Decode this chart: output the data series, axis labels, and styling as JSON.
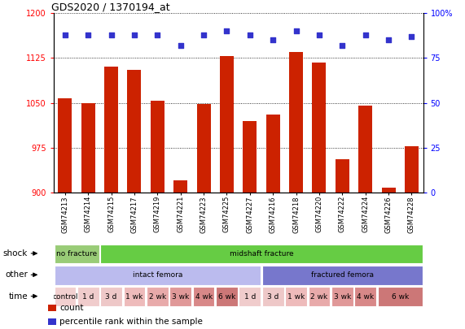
{
  "title": "GDS2020 / 1370194_at",
  "samples": [
    "GSM74213",
    "GSM74214",
    "GSM74215",
    "GSM74217",
    "GSM74219",
    "GSM74221",
    "GSM74223",
    "GSM74225",
    "GSM74227",
    "GSM74216",
    "GSM74218",
    "GSM74220",
    "GSM74222",
    "GSM74224",
    "GSM74226",
    "GSM74228"
  ],
  "bar_values": [
    1057,
    1050,
    1110,
    1105,
    1053,
    920,
    1048,
    1128,
    1020,
    1030,
    1135,
    1118,
    956,
    1045,
    908,
    978
  ],
  "percentile_values": [
    88,
    88,
    88,
    88,
    88,
    82,
    88,
    90,
    88,
    85,
    90,
    88,
    82,
    88,
    85,
    87
  ],
  "ylim_left": [
    900,
    1200
  ],
  "ylim_right": [
    0,
    100
  ],
  "yticks_left": [
    900,
    975,
    1050,
    1125,
    1200
  ],
  "yticks_right": [
    0,
    25,
    50,
    75,
    100
  ],
  "bar_color": "#cc2200",
  "dot_color": "#3333cc",
  "bar_width": 0.6,
  "shock_labels": [
    {
      "text": "no fracture",
      "start": 0,
      "end": 2,
      "color": "#99cc77"
    },
    {
      "text": "midshaft fracture",
      "start": 2,
      "end": 16,
      "color": "#66cc44"
    }
  ],
  "other_labels": [
    {
      "text": "intact femora",
      "start": 0,
      "end": 9,
      "color": "#bbbbee"
    },
    {
      "text": "fractured femora",
      "start": 9,
      "end": 16,
      "color": "#7777cc"
    }
  ],
  "time_labels": [
    {
      "text": "control",
      "start": 0,
      "end": 1,
      "color": "#f2d0d0"
    },
    {
      "text": "1 d",
      "start": 1,
      "end": 2,
      "color": "#f0cccc"
    },
    {
      "text": "3 d",
      "start": 2,
      "end": 3,
      "color": "#eec8c8"
    },
    {
      "text": "1 wk",
      "start": 3,
      "end": 4,
      "color": "#eebbbb"
    },
    {
      "text": "2 wk",
      "start": 4,
      "end": 5,
      "color": "#e8aaaa"
    },
    {
      "text": "3 wk",
      "start": 5,
      "end": 6,
      "color": "#e09898"
    },
    {
      "text": "4 wk",
      "start": 6,
      "end": 7,
      "color": "#d88888"
    },
    {
      "text": "6 wk",
      "start": 7,
      "end": 8,
      "color": "#cc7777"
    },
    {
      "text": "1 d",
      "start": 8,
      "end": 9,
      "color": "#f0cccc"
    },
    {
      "text": "3 d",
      "start": 9,
      "end": 10,
      "color": "#eec8c8"
    },
    {
      "text": "1 wk",
      "start": 10,
      "end": 11,
      "color": "#eebbbb"
    },
    {
      "text": "2 wk",
      "start": 11,
      "end": 12,
      "color": "#e8aaaa"
    },
    {
      "text": "3 wk",
      "start": 12,
      "end": 13,
      "color": "#e09898"
    },
    {
      "text": "4 wk",
      "start": 13,
      "end": 14,
      "color": "#d88888"
    },
    {
      "text": "6 wk",
      "start": 14,
      "end": 16,
      "color": "#cc7777"
    }
  ],
  "left_labels": [
    "shock",
    "other",
    "time"
  ],
  "legend_items": [
    {
      "color": "#cc2200",
      "label": "count"
    },
    {
      "color": "#3333cc",
      "label": "percentile rank within the sample"
    }
  ],
  "fig_width": 5.71,
  "fig_height": 4.05,
  "dpi": 100
}
